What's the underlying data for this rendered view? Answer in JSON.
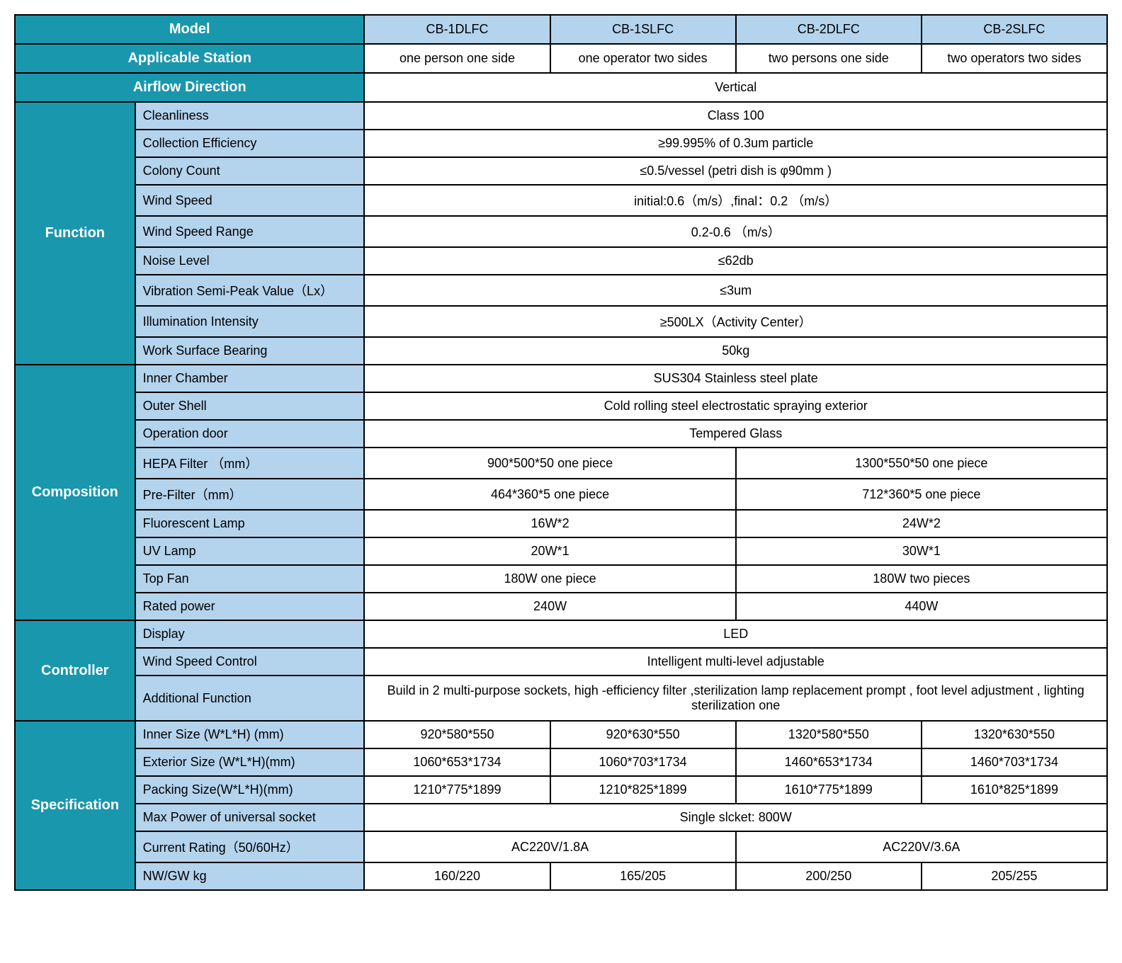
{
  "colors": {
    "teal": "#1997ad",
    "light_blue": "#b4d3ed",
    "white": "#ffffff",
    "black": "#000000",
    "border": "#000000"
  },
  "typography": {
    "header_fontsize": 20,
    "cell_fontsize": 18,
    "font_family": "Arial"
  },
  "header": {
    "model_label": "Model",
    "models": [
      "CB-1DLFC",
      "CB-1SLFC",
      "CB-2DLFC",
      "CB-2SLFC"
    ],
    "station_label": "Applicable Station",
    "stations": [
      "one person one side",
      "one operator two sides",
      "two persons one side",
      "two operators two sides"
    ],
    "airflow_label": "Airflow Direction",
    "airflow_value": "Vertical"
  },
  "function": {
    "section_label": "Function",
    "rows": {
      "cleanliness": {
        "label": "Cleanliness",
        "value": "Class 100"
      },
      "collection": {
        "label": "Collection Efficiency",
        "value": "≥99.995% of 0.3um particle"
      },
      "colony": {
        "label": "Colony Count",
        "value": "≤0.5/vessel (petri dish is φ90mm )"
      },
      "wind_speed": {
        "label": "Wind Speed",
        "value": "initial:0.6（m/s）,final：0.2 （m/s）"
      },
      "wind_range": {
        "label": "Wind Speed Range",
        "value": "0.2-0.6 （m/s）"
      },
      "noise": {
        "label": "Noise Level",
        "value": "≤62db"
      },
      "vibration": {
        "label": "Vibration Semi-Peak Value（Lx）",
        "value": "≤3um"
      },
      "illumination": {
        "label": "Illumination Intensity",
        "value": "≥500LX（Activity Center）"
      },
      "bearing": {
        "label": "Work Surface Bearing",
        "value": "50kg"
      }
    }
  },
  "composition": {
    "section_label": "Composition",
    "rows": {
      "inner_chamber": {
        "label": "Inner Chamber",
        "value": "SUS304 Stainless steel plate"
      },
      "outer_shell": {
        "label": "Outer Shell",
        "value": "Cold rolling steel electrostatic spraying exterior"
      },
      "op_door": {
        "label": "Operation door",
        "value": "Tempered Glass"
      },
      "hepa": {
        "label": "HEPA Filter （mm）",
        "v1": "900*500*50 one piece",
        "v2": "1300*550*50 one piece"
      },
      "prefilter": {
        "label": "Pre-Filter（mm）",
        "v1": "464*360*5 one piece",
        "v2": "712*360*5 one piece"
      },
      "fluorescent": {
        "label": "Fluorescent Lamp",
        "v1": "16W*2",
        "v2": "24W*2"
      },
      "uv": {
        "label": "UV Lamp",
        "v1": "20W*1",
        "v2": "30W*1"
      },
      "topfan": {
        "label": "Top Fan",
        "v1": "180W one piece",
        "v2": "180W two pieces"
      },
      "rated": {
        "label": "Rated power",
        "v1": "240W",
        "v2": "440W"
      }
    }
  },
  "controller": {
    "section_label": "Controller",
    "rows": {
      "display": {
        "label": "Display",
        "value": "LED"
      },
      "wind_ctrl": {
        "label": "Wind Speed Control",
        "value": "Intelligent multi-level adjustable"
      },
      "additional": {
        "label": "Additional Function",
        "value": "Build in 2 multi-purpose sockets, high -efficiency filter ,sterilization lamp replacement prompt , foot level adjustment , lighting sterilization one"
      }
    }
  },
  "specification": {
    "section_label": "Specification",
    "rows": {
      "inner_size": {
        "label": "Inner Size (W*L*H) (mm)",
        "v": [
          "920*580*550",
          "920*630*550",
          "1320*580*550",
          "1320*630*550"
        ]
      },
      "exterior": {
        "label": "Exterior Size (W*L*H)(mm)",
        "v": [
          "1060*653*1734",
          "1060*703*1734",
          "1460*653*1734",
          "1460*703*1734"
        ]
      },
      "packing": {
        "label": "Packing Size(W*L*H)(mm)",
        "v": [
          "1210*775*1899",
          "1210*825*1899",
          "1610*775*1899",
          "1610*825*1899"
        ]
      },
      "maxpower": {
        "label": "Max Power of universal socket",
        "value": "Single slcket: 800W"
      },
      "current": {
        "label": "Current Rating（50/60Hz）",
        "v1": "AC220V/1.8A",
        "v2": "AC220V/3.6A"
      },
      "nwgw": {
        "label": "NW/GW kg",
        "v": [
          "160/220",
          "165/205",
          "200/250",
          "205/255"
        ]
      }
    }
  }
}
